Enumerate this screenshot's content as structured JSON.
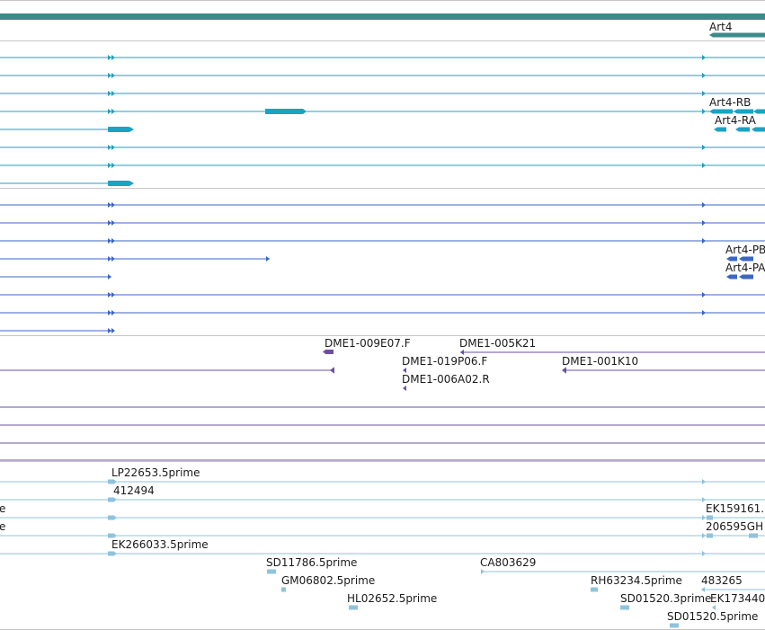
{
  "colors": {
    "gene": "#3d8a8a",
    "track_border": "#c7c7c7",
    "transcript_cyan": "#1aa3c2",
    "transcript_blue": "#3b66c4",
    "clone": "#6a4fa3",
    "est": "#8fc3dc",
    "label": "#1a1a1a"
  },
  "gene_track": {
    "gene_label": "Art4"
  },
  "transcript_track_a": {
    "labels": [
      "Art4-RB",
      "Art4-RA"
    ]
  },
  "transcript_track_b": {
    "labels": [
      "Art4-PB",
      "Art4-PA"
    ]
  },
  "clone_track": {
    "labels": [
      "DME1-009E07.F",
      "DME1-005K21",
      "DME1-019P06.F",
      "DME1-001K10",
      "DME1-006A02.R"
    ]
  },
  "est_track": {
    "labels": [
      "LP22653.5prime",
      "412494",
      "e",
      "e",
      "EK159161.",
      "206595GH",
      "EK266033.5prime",
      "SD11786.5prime",
      "CA803629",
      "GM06802.5prime",
      "RH63234.5prime",
      "483265",
      "HL02652.5prime",
      "SD01520.3prime",
      "EK173440",
      "SD01520.5prime"
    ]
  }
}
